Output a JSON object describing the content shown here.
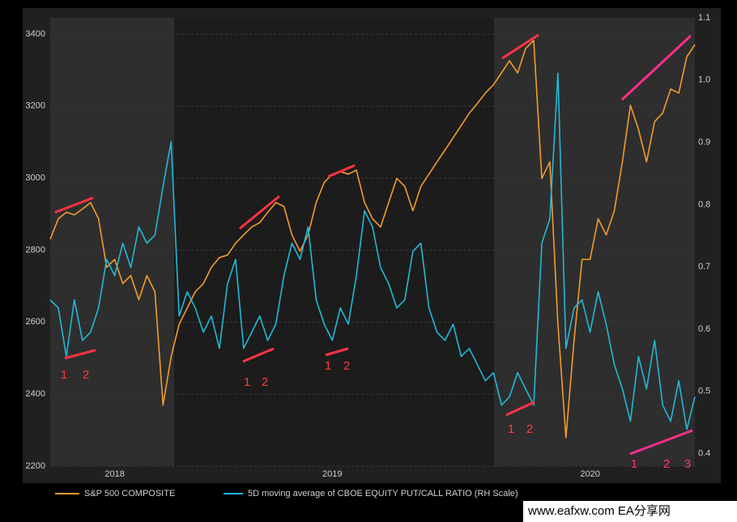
{
  "chart_data": {
    "type": "line",
    "categories": [
      null,
      null,
      null,
      null,
      null,
      null,
      null,
      null,
      "2018",
      null,
      null,
      null,
      null,
      null,
      null,
      null,
      null,
      null,
      null,
      null,
      null,
      null,
      null,
      null,
      null,
      null,
      null,
      null,
      null,
      null,
      null,
      null,
      null,
      null,
      null,
      "2019",
      null,
      null,
      null,
      null,
      null,
      null,
      null,
      null,
      null,
      null,
      null,
      null,
      null,
      null,
      null,
      null,
      null,
      null,
      null,
      null,
      null,
      null,
      null,
      null,
      null,
      null,
      null,
      null,
      null,
      null,
      null,
      "2020",
      null,
      null,
      null,
      null,
      null,
      null,
      null,
      null,
      null,
      null,
      null,
      null,
      null
    ],
    "series": [
      {
        "name": "S&P 500 COMPOSITE",
        "color": "#f39c2b",
        "axis": "y",
        "values": [
          2830,
          2887,
          2905,
          2898,
          2914,
          2932,
          2887,
          2752,
          2774,
          2707,
          2729,
          2662,
          2729,
          2684,
          2369,
          2504,
          2594,
          2639,
          2684,
          2707,
          2752,
          2779,
          2786,
          2819,
          2842,
          2864,
          2876,
          2905,
          2932,
          2921,
          2842,
          2797,
          2842,
          2932,
          2988,
          3011,
          3018,
          3011,
          3022,
          2932,
          2887,
          2864,
          2932,
          2999,
          2977,
          2909,
          2977,
          3011,
          3045,
          3078,
          3112,
          3146,
          3180,
          3207,
          3236,
          3259,
          3292,
          3326,
          3292,
          3360,
          3382,
          2999,
          3045,
          2594,
          2279,
          2549,
          2774,
          2774,
          2887,
          2842,
          2909,
          3045,
          3202,
          3135,
          3045,
          3157,
          3180,
          3247,
          3236,
          3337,
          3371
        ]
      },
      {
        "name": "5D moving average of CBOE EQUITY PUT/CALL RATIO (RH Scale)",
        "color": "#22b8d8",
        "axis": "y2",
        "values": [
          0.647,
          0.634,
          0.556,
          0.647,
          0.582,
          0.595,
          0.634,
          0.712,
          0.686,
          0.738,
          0.699,
          0.764,
          0.738,
          0.751,
          0.829,
          0.901,
          0.621,
          0.66,
          0.634,
          0.595,
          0.621,
          0.569,
          0.673,
          0.712,
          0.569,
          0.595,
          0.621,
          0.582,
          0.608,
          0.686,
          0.738,
          0.712,
          0.764,
          0.647,
          0.608,
          0.582,
          0.634,
          0.608,
          0.686,
          0.79,
          0.764,
          0.699,
          0.673,
          0.634,
          0.647,
          0.725,
          0.738,
          0.634,
          0.595,
          0.582,
          0.608,
          0.556,
          0.569,
          0.543,
          0.517,
          0.53,
          0.478,
          0.491,
          0.53,
          0.504,
          0.478,
          0.738,
          0.777,
          1.011,
          0.569,
          0.634,
          0.647,
          0.595,
          0.66,
          0.608,
          0.543,
          0.504,
          0.452,
          0.556,
          0.504,
          0.582,
          0.478,
          0.452,
          0.517,
          0.439,
          0.491
        ]
      }
    ],
    "ylim": [
      2200,
      3445
    ],
    "yticks": [
      2200,
      2400,
      2600,
      2800,
      3000,
      3200,
      3400
    ],
    "y2lim": [
      0.38,
      1.1
    ],
    "y2ticks": [
      0.4,
      0.5,
      0.6,
      0.7,
      0.8,
      0.9,
      {
        "value": 1,
        "label": "1.0"
      },
      1.1
    ],
    "grid": true,
    "annotations": [
      "1",
      "2",
      "1",
      "2",
      "1",
      "2",
      "1",
      "2",
      "1",
      "2",
      "3"
    ],
    "watermark": "www.eafxw.com EA分享网"
  }
}
